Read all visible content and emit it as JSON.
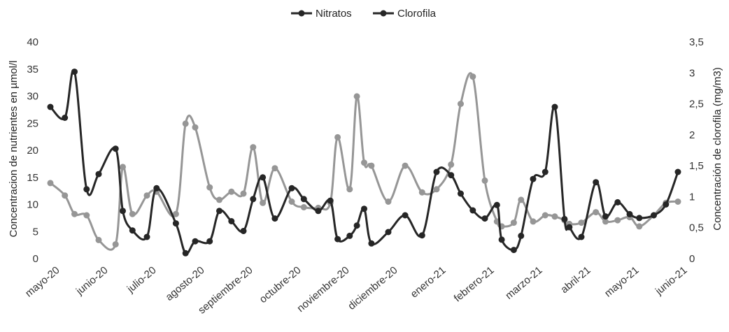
{
  "chart_data": {
    "type": "line",
    "legend_position": "top-center",
    "grid": false,
    "x_tick_labels": [
      "mayo-20",
      "junio-20",
      "julio-20",
      "agosto-20",
      "septiembre-20",
      "octubre-20",
      "noviembre-20",
      "diciembre-20",
      "enero-21",
      "febrero-21",
      "marzo-21",
      "abril-21",
      "mayo-21",
      "junio-21"
    ],
    "y_left": {
      "label": "Concentracion de nutrientes  en µmol/l",
      "ylim": [
        0,
        40
      ],
      "ticks": [
        "0",
        "5",
        "10",
        "15",
        "20",
        "25",
        "30",
        "35",
        "40"
      ]
    },
    "y_right": {
      "label": "Concentración de clorofila (mg/m3)",
      "ylim": [
        0,
        3.5
      ],
      "ticks": [
        "0",
        "0,5",
        "1",
        "1,5",
        "2",
        "2,5",
        "3",
        "3,5"
      ]
    },
    "series": [
      {
        "name": "Nitratos",
        "axis": "left",
        "color": "#262626",
        "x": [
          0.0,
          0.3,
          0.5,
          0.75,
          1.0,
          1.35,
          1.5,
          1.7,
          2.0,
          2.2,
          2.6,
          2.8,
          3.0,
          3.3,
          3.5,
          3.75,
          4.0,
          4.2,
          4.4,
          4.65,
          5.0,
          5.25,
          5.55,
          5.8,
          5.95,
          6.2,
          6.35,
          6.5,
          6.65,
          7.0,
          7.35,
          7.7,
          8.0,
          8.3,
          8.5,
          8.75,
          9.0,
          9.25,
          9.35,
          9.6,
          9.75,
          10.0,
          10.25,
          10.45,
          10.65,
          10.75,
          11.0,
          11.3,
          11.5,
          11.75,
          12.0,
          12.2,
          12.5,
          12.75,
          13.0
        ],
        "values": [
          28.0,
          26.0,
          34.5,
          12.8,
          15.6,
          20.3,
          8.8,
          5.2,
          4.0,
          13.0,
          6.5,
          1.0,
          3.2,
          3.2,
          8.8,
          6.9,
          5.1,
          11.0,
          15.0,
          7.4,
          13.0,
          11.0,
          8.8,
          10.7,
          3.6,
          4.2,
          6.1,
          9.2,
          2.8,
          4.9,
          8.0,
          4.3,
          16.0,
          15.4,
          12.0,
          8.9,
          7.4,
          9.9,
          3.5,
          1.6,
          4.2,
          14.7,
          16.0,
          28.0,
          7.3,
          5.8,
          4.0,
          14.1,
          7.8,
          10.4,
          8.2,
          7.5,
          8.0,
          10.0,
          16.0
        ]
      },
      {
        "name": "Clorofila",
        "axis": "right",
        "color": "#969696",
        "x": [
          0.0,
          0.3,
          0.5,
          0.75,
          1.0,
          1.35,
          1.5,
          1.7,
          2.0,
          2.2,
          2.6,
          2.8,
          3.0,
          3.3,
          3.5,
          3.75,
          4.0,
          4.2,
          4.4,
          4.65,
          5.0,
          5.25,
          5.55,
          5.8,
          5.95,
          6.2,
          6.35,
          6.5,
          6.65,
          7.0,
          7.35,
          7.7,
          8.0,
          8.3,
          8.5,
          8.75,
          9.0,
          9.25,
          9.35,
          9.6,
          9.75,
          10.0,
          10.25,
          10.45,
          10.65,
          10.75,
          11.0,
          11.3,
          11.5,
          11.75,
          12.0,
          12.2,
          12.5,
          12.75,
          13.0
        ],
        "values": [
          1.22,
          1.02,
          0.72,
          0.7,
          0.3,
          0.23,
          1.48,
          0.72,
          1.02,
          1.08,
          0.72,
          2.18,
          2.12,
          1.15,
          0.95,
          1.08,
          1.05,
          1.8,
          0.9,
          1.46,
          0.92,
          0.83,
          0.82,
          0.9,
          1.96,
          1.12,
          2.62,
          1.55,
          1.5,
          0.92,
          1.5,
          1.07,
          1.12,
          1.52,
          2.5,
          2.94,
          1.26,
          0.6,
          0.52,
          0.58,
          0.95,
          0.6,
          0.7,
          0.68,
          0.62,
          0.56,
          0.58,
          0.75,
          0.6,
          0.62,
          0.67,
          0.52,
          0.7,
          0.9,
          0.92
        ]
      }
    ]
  }
}
